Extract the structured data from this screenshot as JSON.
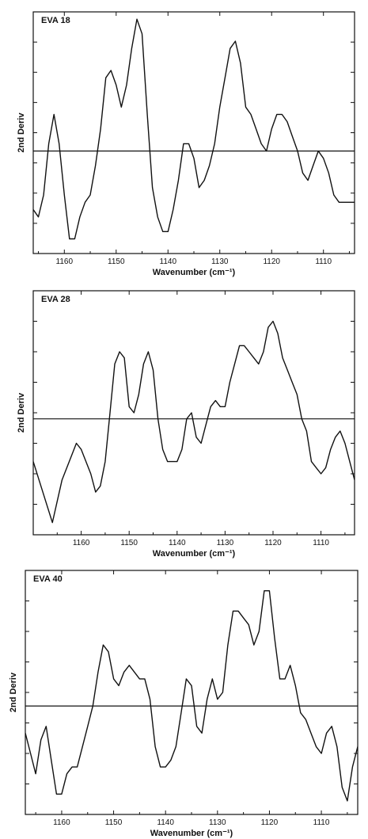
{
  "chart_data": [
    {
      "type": "line",
      "title": "EVA 18",
      "xlabel": "Wavenumber (cm⁻¹)",
      "ylabel": "2nd Deriv",
      "xlim": [
        1166,
        1104
      ],
      "ylim": [
        -1.4,
        1.9
      ],
      "x_ticks": [
        1160,
        1150,
        1140,
        1130,
        1120,
        1110
      ],
      "y_ticks_shown_without_labels": true,
      "grid": false,
      "zero_line": true,
      "series": [
        {
          "x": [
            1166,
            1165,
            1164,
            1163,
            1162,
            1161,
            1160,
            1159,
            1158,
            1157,
            1156,
            1155,
            1154,
            1153,
            1152,
            1151,
            1150,
            1149,
            1148,
            1147,
            1146,
            1145,
            1144,
            1143,
            1142,
            1141,
            1140,
            1139,
            1138,
            1137,
            1136,
            1135,
            1134,
            1133,
            1132,
            1131,
            1130,
            1129,
            1128,
            1127,
            1126,
            1125,
            1124,
            1123,
            1122,
            1121,
            1120,
            1119,
            1118,
            1117,
            1116,
            1115,
            1114,
            1113,
            1112,
            1111,
            1110,
            1109,
            1108,
            1107,
            1106,
            1105,
            1104
          ],
          "y": [
            -0.8,
            -0.9,
            -0.6,
            0.1,
            0.5,
            0.1,
            -0.6,
            -1.2,
            -1.2,
            -0.9,
            -0.7,
            -0.6,
            -0.2,
            0.3,
            1.0,
            1.1,
            0.9,
            0.6,
            0.9,
            1.4,
            1.8,
            1.6,
            0.5,
            -0.5,
            -0.9,
            -1.1,
            -1.1,
            -0.8,
            -0.4,
            0.1,
            0.1,
            -0.1,
            -0.5,
            -0.4,
            -0.2,
            0.1,
            0.6,
            1.0,
            1.4,
            1.5,
            1.2,
            0.6,
            0.5,
            0.3,
            0.1,
            0.0,
            0.3,
            0.5,
            0.5,
            0.4,
            0.2,
            0.0,
            -0.3,
            -0.4,
            -0.2,
            0.0,
            -0.1,
            -0.3,
            -0.6,
            -0.7,
            -0.7,
            -0.7,
            -0.7
          ]
        }
      ]
    },
    {
      "type": "line",
      "title": "EVA 28",
      "xlabel": "Wavenumber (cm⁻¹)",
      "ylabel": "2nd Deriv",
      "xlim": [
        1170,
        1103
      ],
      "ylim": [
        -1.9,
        2.1
      ],
      "x_ticks": [
        1160,
        1150,
        1140,
        1130,
        1120,
        1110
      ],
      "y_ticks_shown_without_labels": true,
      "grid": false,
      "zero_line": true,
      "series": [
        {
          "x": [
            1170,
            1168,
            1166,
            1164,
            1162,
            1161,
            1160,
            1158,
            1157,
            1156,
            1155,
            1154,
            1153,
            1152,
            1151,
            1150,
            1149,
            1148,
            1147,
            1146,
            1145,
            1144,
            1143,
            1142,
            1141,
            1140,
            1139,
            1138,
            1137,
            1136,
            1135,
            1134,
            1133,
            1132,
            1131,
            1130,
            1129,
            1128,
            1127,
            1126,
            1125,
            1124,
            1123,
            1122,
            1121,
            1120,
            1119,
            1118,
            1117,
            1116,
            1115,
            1114,
            1113,
            1112,
            1111,
            1110,
            1109,
            1108,
            1107,
            1106,
            1105,
            1104,
            1103
          ],
          "y": [
            -0.7,
            -1.2,
            -1.7,
            -1.0,
            -0.6,
            -0.4,
            -0.5,
            -0.9,
            -1.2,
            -1.1,
            -0.7,
            0.1,
            0.9,
            1.1,
            1.0,
            0.2,
            0.1,
            0.4,
            0.9,
            1.1,
            0.8,
            0.0,
            -0.5,
            -0.7,
            -0.7,
            -0.7,
            -0.5,
            0.0,
            0.1,
            -0.3,
            -0.4,
            -0.1,
            0.2,
            0.3,
            0.2,
            0.2,
            0.6,
            0.9,
            1.2,
            1.2,
            1.1,
            1.0,
            0.9,
            1.1,
            1.5,
            1.6,
            1.4,
            1.0,
            0.8,
            0.6,
            0.4,
            0.0,
            -0.2,
            -0.7,
            -0.8,
            -0.9,
            -0.8,
            -0.5,
            -0.3,
            -0.2,
            -0.4,
            -0.7,
            -1.0
          ]
        }
      ]
    },
    {
      "type": "line",
      "title": "EVA 40",
      "xlabel": "Wavenumber (cm⁻¹)",
      "ylabel": "2nd Deriv",
      "xlim": [
        1167,
        1103
      ],
      "ylim": [
        -1.6,
        2.0
      ],
      "x_ticks": [
        1160,
        1150,
        1140,
        1130,
        1120,
        1110
      ],
      "y_ticks_shown_without_labels": true,
      "grid": false,
      "zero_line": true,
      "series": [
        {
          "x": [
            1167,
            1166,
            1165,
            1164,
            1163,
            1162,
            1161,
            1160,
            1159,
            1158,
            1157,
            1156,
            1155,
            1154,
            1153,
            1152,
            1151,
            1150,
            1149,
            1148,
            1147,
            1146,
            1145,
            1144,
            1143,
            1142,
            1141,
            1140,
            1139,
            1138,
            1137,
            1136,
            1135,
            1134,
            1133,
            1132,
            1131,
            1130,
            1129,
            1128,
            1127,
            1126,
            1125,
            1124,
            1123,
            1122,
            1121,
            1120,
            1119,
            1118,
            1117,
            1116,
            1115,
            1114,
            1113,
            1112,
            1111,
            1110,
            1109,
            1108,
            1107,
            1106,
            1105,
            1104,
            1103
          ],
          "y": [
            -0.4,
            -0.7,
            -1.0,
            -0.5,
            -0.3,
            -0.8,
            -1.3,
            -1.3,
            -1.0,
            -0.9,
            -0.9,
            -0.6,
            -0.3,
            0.0,
            0.5,
            0.9,
            0.8,
            0.4,
            0.3,
            0.5,
            0.6,
            0.5,
            0.4,
            0.4,
            0.1,
            -0.6,
            -0.9,
            -0.9,
            -0.8,
            -0.6,
            -0.1,
            0.4,
            0.3,
            -0.3,
            -0.4,
            0.1,
            0.4,
            0.1,
            0.2,
            0.9,
            1.4,
            1.4,
            1.3,
            1.2,
            0.9,
            1.1,
            1.7,
            1.7,
            1.0,
            0.4,
            0.4,
            0.6,
            0.3,
            -0.1,
            -0.2,
            -0.4,
            -0.6,
            -0.7,
            -0.4,
            -0.3,
            -0.6,
            -1.2,
            -1.4,
            -0.9,
            -0.6
          ]
        }
      ]
    }
  ]
}
